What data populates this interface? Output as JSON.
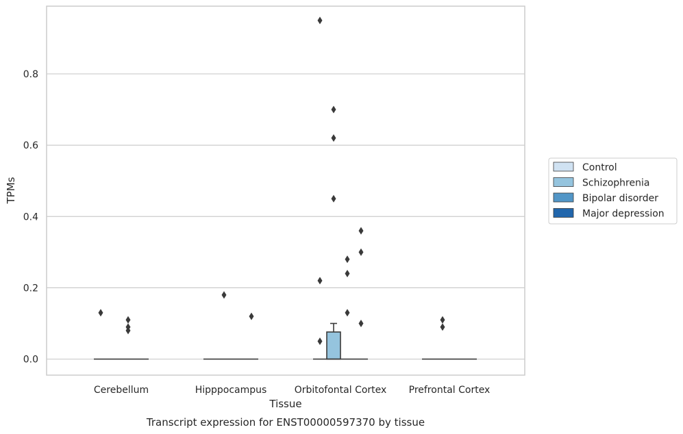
{
  "colors": {
    "Control": "#d0e2f2",
    "Schizophrenia": "#95c4de",
    "Bipolar disorder": "#5296c7",
    "Major depression": "#2166ac",
    "grid": "#cccccc",
    "spine": "#cccccc",
    "box_edge": "#3a3a3a"
  },
  "chart_data": {
    "type": "box",
    "xlabel": "Tissue",
    "ylabel": "TPMs",
    "caption": "Transcript expression for ENST00000597370 by tissue",
    "ylim": [
      -0.045,
      0.99
    ],
    "yticks": [
      0.0,
      0.2,
      0.4,
      0.6,
      0.8
    ],
    "ytick_labels": [
      "0.0",
      "0.2",
      "0.4",
      "0.6",
      "0.8"
    ],
    "categories": [
      "Cerebellum",
      "Hipppocampus",
      "Orbitofontal Cortex",
      "Prefrontal Cortex"
    ],
    "grid": "horizontal",
    "legend_position": "right",
    "legend": [
      "Control",
      "Schizophrenia",
      "Bipolar disorder",
      "Major depression"
    ],
    "series": [
      {
        "name": "Control",
        "groups": [
          {
            "category": "Cerebellum",
            "q1": 0,
            "median": 0,
            "q3": 0,
            "whisker_low": 0,
            "whisker_high": 0,
            "outliers": [
              0.13
            ]
          },
          {
            "category": "Hipppocampus",
            "q1": 0,
            "median": 0,
            "q3": 0,
            "whisker_low": 0,
            "whisker_high": 0,
            "outliers": []
          },
          {
            "category": "Orbitofontal Cortex",
            "q1": 0,
            "median": 0,
            "q3": 0,
            "whisker_low": 0,
            "whisker_high": 0,
            "outliers": [
              0.05,
              0.22,
              0.95
            ]
          },
          {
            "category": "Prefrontal Cortex",
            "q1": 0,
            "median": 0,
            "q3": 0,
            "whisker_low": 0,
            "whisker_high": 0,
            "outliers": []
          }
        ]
      },
      {
        "name": "Schizophrenia",
        "groups": [
          {
            "category": "Cerebellum",
            "q1": 0,
            "median": 0,
            "q3": 0,
            "whisker_low": 0,
            "whisker_high": 0,
            "outliers": []
          },
          {
            "category": "Hipppocampus",
            "q1": 0,
            "median": 0,
            "q3": 0,
            "whisker_low": 0,
            "whisker_high": 0,
            "outliers": [
              0.18
            ]
          },
          {
            "category": "Orbitofontal Cortex",
            "q1": 0,
            "median": 0,
            "q3": 0.076,
            "whisker_low": 0,
            "whisker_high": 0.1,
            "outliers": [
              0.45,
              0.62,
              0.7
            ]
          },
          {
            "category": "Prefrontal Cortex",
            "q1": 0,
            "median": 0,
            "q3": 0,
            "whisker_low": 0,
            "whisker_high": 0,
            "outliers": [
              0.09,
              0.11
            ]
          }
        ]
      },
      {
        "name": "Bipolar disorder",
        "groups": [
          {
            "category": "Cerebellum",
            "q1": 0,
            "median": 0,
            "q3": 0,
            "whisker_low": 0,
            "whisker_high": 0,
            "outliers": [
              0.08,
              0.09,
              0.11
            ]
          },
          {
            "category": "Hipppocampus",
            "q1": 0,
            "median": 0,
            "q3": 0,
            "whisker_low": 0,
            "whisker_high": 0,
            "outliers": []
          },
          {
            "category": "Orbitofontal Cortex",
            "q1": 0,
            "median": 0,
            "q3": 0,
            "whisker_low": 0,
            "whisker_high": 0,
            "outliers": [
              0.13,
              0.24,
              0.28
            ]
          },
          {
            "category": "Prefrontal Cortex",
            "q1": 0,
            "median": 0,
            "q3": 0,
            "whisker_low": 0,
            "whisker_high": 0,
            "outliers": []
          }
        ]
      },
      {
        "name": "Major depression",
        "groups": [
          {
            "category": "Cerebellum",
            "q1": 0,
            "median": 0,
            "q3": 0,
            "whisker_low": 0,
            "whisker_high": 0,
            "outliers": []
          },
          {
            "category": "Hipppocampus",
            "q1": 0,
            "median": 0,
            "q3": 0,
            "whisker_low": 0,
            "whisker_high": 0,
            "outliers": [
              0.12
            ]
          },
          {
            "category": "Orbitofontal Cortex",
            "q1": 0,
            "median": 0,
            "q3": 0,
            "whisker_low": 0,
            "whisker_high": 0,
            "outliers": [
              0.1,
              0.3,
              0.36
            ]
          },
          {
            "category": "Prefrontal Cortex",
            "q1": 0,
            "median": 0,
            "q3": 0,
            "whisker_low": 0,
            "whisker_high": 0,
            "outliers": []
          }
        ]
      }
    ]
  }
}
